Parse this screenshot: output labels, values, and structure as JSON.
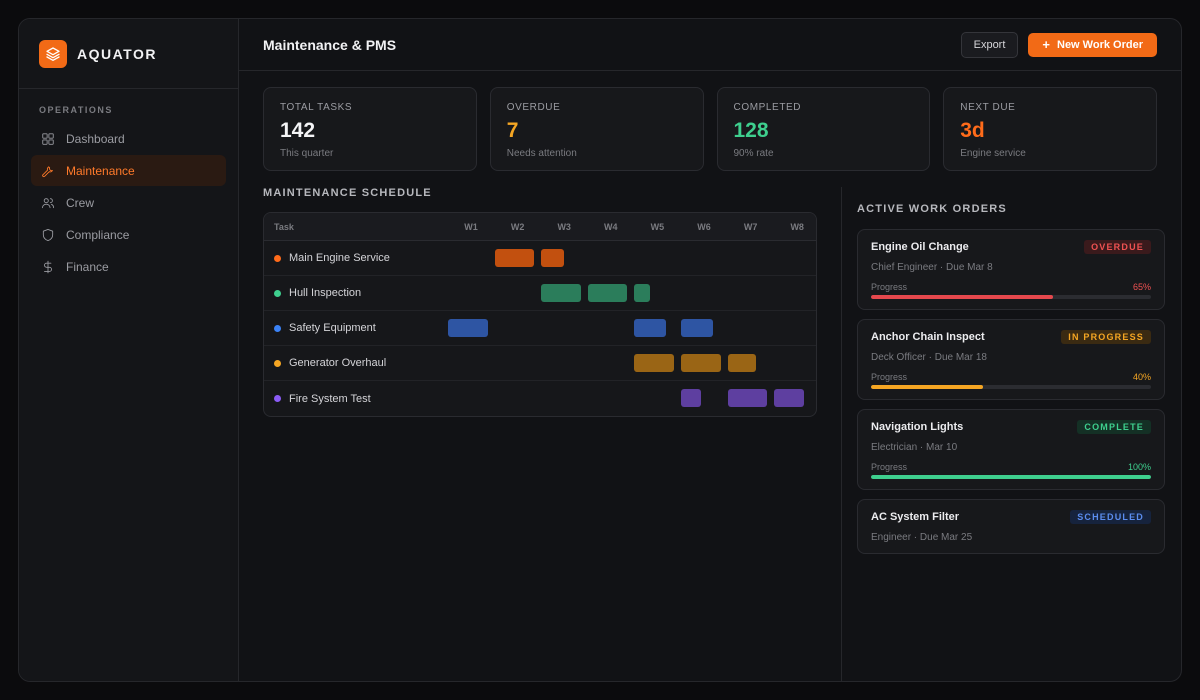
{
  "brand": {
    "name": "AQUATOR",
    "logo_icon": "layers-icon",
    "accent": "#f26a16"
  },
  "sidebar": {
    "section_title": "OPERATIONS",
    "items": [
      {
        "label": "Dashboard",
        "icon": "grid-icon",
        "active": false
      },
      {
        "label": "Maintenance",
        "icon": "wrench-icon",
        "active": true
      },
      {
        "label": "Crew",
        "icon": "users-icon",
        "active": false
      },
      {
        "label": "Compliance",
        "icon": "shield-icon",
        "active": false
      },
      {
        "label": "Finance",
        "icon": "dollar-icon",
        "active": false
      }
    ]
  },
  "header": {
    "title": "Maintenance & PMS",
    "export_label": "Export",
    "new_order_label": "New Work Order"
  },
  "stats": [
    {
      "label": "TOTAL TASKS",
      "value": "142",
      "sub": "This quarter",
      "color": "#f4f4f6"
    },
    {
      "label": "OVERDUE",
      "value": "7",
      "sub": "Needs attention",
      "color": "#f5a623"
    },
    {
      "label": "COMPLETED",
      "value": "128",
      "sub": "90% rate",
      "color": "#3ecf8e"
    },
    {
      "label": "NEXT DUE",
      "value": "3d",
      "sub": "Engine service",
      "color": "#ff6b1a"
    }
  ],
  "schedule": {
    "title": "MAINTENANCE SCHEDULE",
    "task_header": "Task",
    "weeks": [
      "W1",
      "W2",
      "W3",
      "W4",
      "W5",
      "W6",
      "W7",
      "W8"
    ],
    "tasks": [
      {
        "name": "Main Engine Service",
        "color": "#ff6b1a",
        "bar_color": "#c2500f",
        "bars": [
          [
            2,
            0.85
          ],
          [
            3,
            0.5
          ]
        ]
      },
      {
        "name": "Hull Inspection",
        "color": "#3ecf8e",
        "bar_color": "#2b7d5b",
        "bars": [
          [
            3,
            0.85
          ],
          [
            4,
            0.85
          ],
          [
            5,
            0.33
          ]
        ]
      },
      {
        "name": "Safety Equipment",
        "color": "#3b82f6",
        "bar_color": "#2e55a3",
        "bars": [
          [
            1,
            0.85
          ],
          [
            5,
            0.68
          ],
          [
            6,
            0.68
          ]
        ]
      },
      {
        "name": "Generator Overhaul",
        "color": "#f5a623",
        "bar_color": "#9a6515",
        "bars": [
          [
            5,
            0.85
          ],
          [
            6,
            0.85
          ],
          [
            7,
            0.6
          ]
        ]
      },
      {
        "name": "Fire System Test",
        "color": "#8b5cf6",
        "bar_color": "#5e3fa0",
        "bars": [
          [
            6,
            0.42
          ],
          [
            7,
            0.85
          ],
          [
            8,
            0.65
          ]
        ]
      }
    ]
  },
  "orders": {
    "title": "ACTIVE WORK ORDERS",
    "progress_label": "Progress",
    "items": [
      {
        "title": "Engine Oil Change",
        "status": "OVERDUE",
        "badge_bg": "#3a1a1c",
        "badge_fg": "#f05252",
        "meta": "Chief Engineer · Due Mar 8",
        "progress": 65,
        "progress_text": "65%",
        "bar_color": "#e5484d",
        "pct_color": "#f05252"
      },
      {
        "title": "Anchor Chain Inspect",
        "status": "IN PROGRESS",
        "badge_bg": "#3a2a12",
        "badge_fg": "#f5a623",
        "meta": "Deck Officer · Due Mar 18",
        "progress": 40,
        "progress_text": "40%",
        "bar_color": "#f5a623",
        "pct_color": "#f5a623"
      },
      {
        "title": "Navigation Lights",
        "status": "COMPLETE",
        "badge_bg": "#143025",
        "badge_fg": "#3ecf8e",
        "meta": "Electrician · Mar 10",
        "progress": 100,
        "progress_text": "100%",
        "bar_color": "#3ecf8e",
        "pct_color": "#3ecf8e"
      },
      {
        "title": "AC System Filter",
        "status": "SCHEDULED",
        "badge_bg": "#16233d",
        "badge_fg": "#5b8def",
        "meta": "Engineer · Due Mar 25",
        "progress": null
      }
    ]
  }
}
